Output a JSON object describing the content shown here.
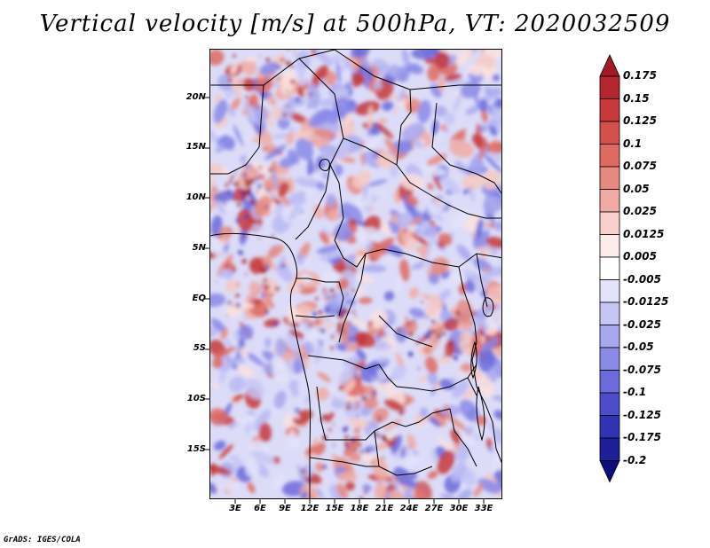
{
  "title": "Vertical velocity [m/s] at 500hPa, VT: 2020032509",
  "credit": "GrADS: IGES/COLA",
  "map": {
    "variable": "Vertical velocity",
    "units": "m/s",
    "level": "500hPa",
    "valid_time": "2020032509",
    "lat_labels": [
      "20N",
      "15N",
      "10N",
      "5N",
      "EQ",
      "5S",
      "10S",
      "15S"
    ],
    "lon_labels": [
      "3E",
      "6E",
      "9E",
      "12E",
      "15E",
      "18E",
      "21E",
      "24E",
      "27E",
      "30E",
      "33E"
    ]
  },
  "colorbar": {
    "levels": [
      "0.175",
      "0.15",
      "0.125",
      "0.1",
      "0.075",
      "0.05",
      "0.025",
      "0.0125",
      "0.005",
      "-0.005",
      "-0.0125",
      "-0.025",
      "-0.05",
      "-0.075",
      "-0.1",
      "-0.125",
      "-0.175",
      "-0.2"
    ],
    "colors": [
      "#a11a26",
      "#b4262f",
      "#c6383b",
      "#d4504d",
      "#de6a62",
      "#e68a80",
      "#f0aca4",
      "#f8cfca",
      "#fcebe9",
      "#ffffff",
      "#e3e3fb",
      "#c6c6f6",
      "#a8a8ef",
      "#8a8ae7",
      "#6b6bdc",
      "#4c4cca",
      "#3232b4",
      "#1e1e96",
      "#0d0d7c"
    ]
  }
}
